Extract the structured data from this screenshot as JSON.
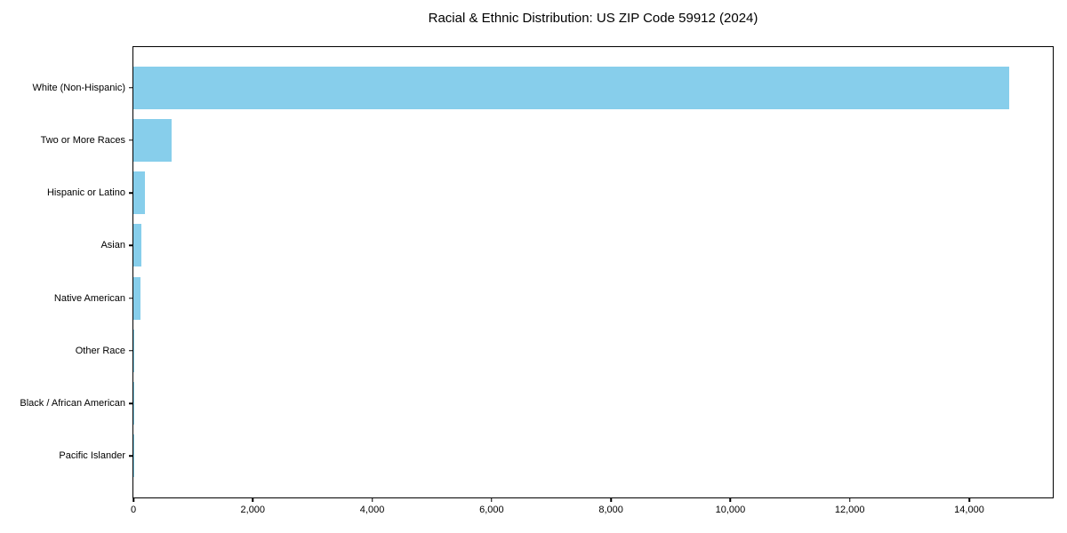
{
  "chart_data": {
    "type": "bar",
    "orientation": "horizontal",
    "title": "Racial & Ethnic Distribution: US ZIP Code 59912 (2024)",
    "categories": [
      "White (Non-Hispanic)",
      "Two or More Races",
      "Hispanic or Latino",
      "Asian",
      "Native American",
      "Other Race",
      "Black / African American",
      "Pacific Islander"
    ],
    "values": [
      14670,
      640,
      190,
      135,
      115,
      20,
      8,
      3
    ],
    "xlabel": "",
    "ylabel": "",
    "xlim": [
      0,
      15400
    ],
    "xticks": [
      {
        "value": 0,
        "label": "0"
      },
      {
        "value": 2000,
        "label": "2,000"
      },
      {
        "value": 4000,
        "label": "4,000"
      },
      {
        "value": 6000,
        "label": "6,000"
      },
      {
        "value": 8000,
        "label": "8,000"
      },
      {
        "value": 10000,
        "label": "10,000"
      },
      {
        "value": 12000,
        "label": "12,000"
      },
      {
        "value": 14000,
        "label": "14,000"
      }
    ],
    "bar_color": "#87CEEB",
    "axis_color": "#000000",
    "background_color": "#FFFFFF",
    "grid": false,
    "legend_position": "none"
  }
}
